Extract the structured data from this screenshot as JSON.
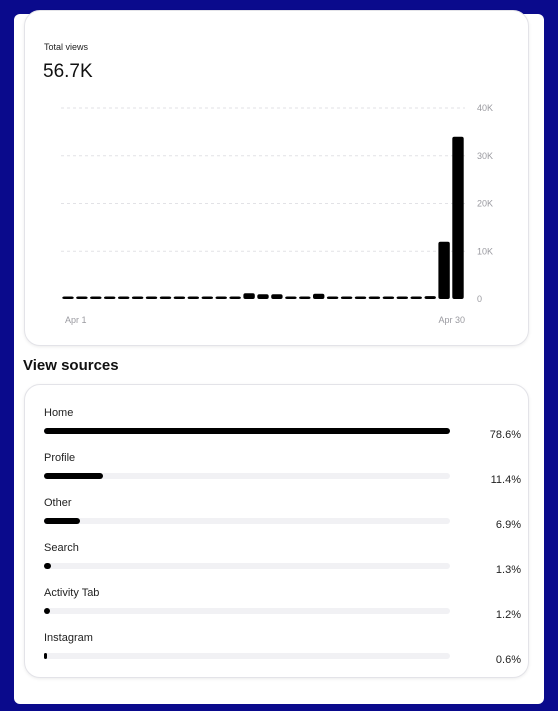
{
  "total_views": {
    "label": "Total views",
    "value": "56.7K"
  },
  "chart_data": {
    "type": "bar",
    "y_ticks": [
      "40K",
      "30K",
      "20K",
      "10K",
      "0"
    ],
    "ylim": [
      0,
      40000
    ],
    "x_labels": [
      "Apr 1",
      "Apr 30"
    ],
    "values": [
      400,
      150,
      400,
      150,
      150,
      400,
      400,
      400,
      400,
      150,
      150,
      300,
      300,
      1200,
      1000,
      1000,
      150,
      150,
      1100,
      450,
      150,
      150,
      150,
      150,
      150,
      150,
      600,
      12000,
      34000
    ]
  },
  "view_sources": {
    "heading": "View sources",
    "items": [
      {
        "name": "Home",
        "percent_label": "78.6%",
        "percent": 78.6
      },
      {
        "name": "Profile",
        "percent_label": "11.4%",
        "percent": 11.4
      },
      {
        "name": "Other",
        "percent_label": "6.9%",
        "percent": 6.9
      },
      {
        "name": "Search",
        "percent_label": "1.3%",
        "percent": 1.3
      },
      {
        "name": "Activity Tab",
        "percent_label": "1.2%",
        "percent": 1.2
      },
      {
        "name": "Instagram",
        "percent_label": "0.6%",
        "percent": 0.6
      }
    ]
  }
}
